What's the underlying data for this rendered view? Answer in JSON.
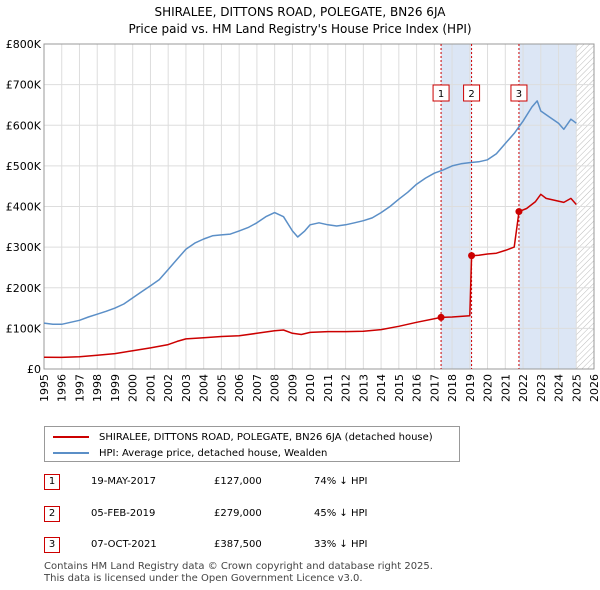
{
  "chart_data": {
    "type": "line",
    "title": "SHIRALEE, DITTONS ROAD, POLEGATE, BN26 6JA",
    "subtitle": "Price paid vs. HM Land Registry's House Price Index (HPI)",
    "xlabel": "",
    "ylabel": "",
    "xlim": [
      1995,
      2026
    ],
    "ylim": [
      0,
      800000
    ],
    "y_ticks": [
      {
        "value": 0,
        "label": "£0"
      },
      {
        "value": 100000,
        "label": "£100K"
      },
      {
        "value": 200000,
        "label": "£200K"
      },
      {
        "value": 300000,
        "label": "£300K"
      },
      {
        "value": 400000,
        "label": "£400K"
      },
      {
        "value": 500000,
        "label": "£500K"
      },
      {
        "value": 600000,
        "label": "£600K"
      },
      {
        "value": 700000,
        "label": "£700K"
      },
      {
        "value": 800000,
        "label": "£800K"
      }
    ],
    "x_ticks": [
      "1995",
      "1996",
      "1997",
      "1998",
      "1999",
      "2000",
      "2001",
      "2002",
      "2003",
      "2004",
      "2005",
      "2006",
      "2007",
      "2008",
      "2009",
      "2010",
      "2011",
      "2012",
      "2013",
      "2014",
      "2015",
      "2016",
      "2017",
      "2018",
      "2019",
      "2020",
      "2021",
      "2022",
      "2023",
      "2024",
      "2025",
      "2026"
    ],
    "grid": true,
    "shaded_spans": [
      [
        2017.38,
        2019.1
      ],
      [
        2021.77,
        2025.0
      ]
    ],
    "hatched_from": 2025.0,
    "series": [
      {
        "name": "SHIRALEE, DITTONS ROAD, POLEGATE, BN26 6JA (detached house)",
        "color": "#cc0000",
        "points": [
          [
            1995.0,
            29000
          ],
          [
            1996.0,
            28500
          ],
          [
            1997.0,
            30000
          ],
          [
            1998.0,
            34000
          ],
          [
            1999.0,
            38000
          ],
          [
            2000.0,
            45000
          ],
          [
            2001.0,
            52000
          ],
          [
            2002.0,
            60000
          ],
          [
            2002.5,
            68000
          ],
          [
            2003.0,
            74000
          ],
          [
            2004.0,
            77000
          ],
          [
            2005.0,
            80000
          ],
          [
            2006.0,
            82000
          ],
          [
            2007.0,
            88000
          ],
          [
            2008.0,
            94000
          ],
          [
            2008.5,
            96000
          ],
          [
            2009.0,
            88000
          ],
          [
            2009.5,
            85000
          ],
          [
            2010.0,
            90000
          ],
          [
            2011.0,
            92000
          ],
          [
            2012.0,
            92000
          ],
          [
            2013.0,
            93000
          ],
          [
            2014.0,
            97000
          ],
          [
            2015.0,
            105000
          ],
          [
            2016.0,
            115000
          ],
          [
            2017.38,
            127000
          ],
          [
            2018.0,
            128000
          ],
          [
            2019.0,
            131000
          ],
          [
            2019.1,
            279000
          ],
          [
            2019.5,
            280000
          ],
          [
            2020.0,
            283000
          ],
          [
            2020.5,
            285000
          ],
          [
            2021.0,
            292000
          ],
          [
            2021.5,
            300000
          ],
          [
            2021.77,
            387500
          ],
          [
            2022.2,
            395000
          ],
          [
            2022.7,
            412000
          ],
          [
            2023.0,
            430000
          ],
          [
            2023.3,
            420000
          ],
          [
            2023.8,
            415000
          ],
          [
            2024.3,
            410000
          ],
          [
            2024.7,
            420000
          ],
          [
            2025.0,
            405000
          ]
        ]
      },
      {
        "name": "HPI: Average price, detached house, Wealden",
        "color": "#5b8fc7",
        "points": [
          [
            1995.0,
            113000
          ],
          [
            1995.5,
            110000
          ],
          [
            1996.0,
            110000
          ],
          [
            1996.5,
            115000
          ],
          [
            1997.0,
            120000
          ],
          [
            1997.5,
            128000
          ],
          [
            1998.0,
            135000
          ],
          [
            1998.5,
            142000
          ],
          [
            1999.0,
            150000
          ],
          [
            1999.5,
            160000
          ],
          [
            2000.0,
            175000
          ],
          [
            2000.5,
            190000
          ],
          [
            2001.0,
            205000
          ],
          [
            2001.5,
            220000
          ],
          [
            2002.0,
            245000
          ],
          [
            2002.5,
            270000
          ],
          [
            2003.0,
            295000
          ],
          [
            2003.5,
            310000
          ],
          [
            2004.0,
            320000
          ],
          [
            2004.5,
            328000
          ],
          [
            2005.0,
            330000
          ],
          [
            2005.5,
            332000
          ],
          [
            2006.0,
            340000
          ],
          [
            2006.5,
            348000
          ],
          [
            2007.0,
            360000
          ],
          [
            2007.5,
            375000
          ],
          [
            2008.0,
            385000
          ],
          [
            2008.5,
            375000
          ],
          [
            2009.0,
            340000
          ],
          [
            2009.3,
            325000
          ],
          [
            2009.7,
            340000
          ],
          [
            2010.0,
            355000
          ],
          [
            2010.5,
            360000
          ],
          [
            2011.0,
            355000
          ],
          [
            2011.5,
            352000
          ],
          [
            2012.0,
            355000
          ],
          [
            2012.5,
            360000
          ],
          [
            2013.0,
            365000
          ],
          [
            2013.5,
            372000
          ],
          [
            2014.0,
            385000
          ],
          [
            2014.5,
            400000
          ],
          [
            2015.0,
            418000
          ],
          [
            2015.5,
            435000
          ],
          [
            2016.0,
            455000
          ],
          [
            2016.5,
            470000
          ],
          [
            2017.0,
            482000
          ],
          [
            2017.5,
            490000
          ],
          [
            2018.0,
            500000
          ],
          [
            2018.5,
            505000
          ],
          [
            2019.0,
            508000
          ],
          [
            2019.5,
            510000
          ],
          [
            2020.0,
            515000
          ],
          [
            2020.5,
            530000
          ],
          [
            2021.0,
            555000
          ],
          [
            2021.5,
            580000
          ],
          [
            2022.0,
            610000
          ],
          [
            2022.5,
            645000
          ],
          [
            2022.8,
            660000
          ],
          [
            2023.0,
            635000
          ],
          [
            2023.5,
            620000
          ],
          [
            2024.0,
            605000
          ],
          [
            2024.3,
            590000
          ],
          [
            2024.7,
            615000
          ],
          [
            2025.0,
            605000
          ]
        ]
      }
    ],
    "sale_markers": [
      {
        "label": "1",
        "x": 2017.38,
        "y": 127000
      },
      {
        "label": "2",
        "x": 2019.1,
        "y": 279000
      },
      {
        "label": "3",
        "x": 2021.77,
        "y": 387500
      }
    ]
  },
  "legend": {
    "property_label": "SHIRALEE, DITTONS ROAD, POLEGATE, BN26 6JA (detached house)",
    "hpi_label": "HPI: Average price, detached house, Wealden"
  },
  "sales": [
    {
      "num": "1",
      "date": "19-MAY-2017",
      "price": "£127,000",
      "hpi": "74% ↓ HPI"
    },
    {
      "num": "2",
      "date": "05-FEB-2019",
      "price": "£279,000",
      "hpi": "45% ↓ HPI"
    },
    {
      "num": "3",
      "date": "07-OCT-2021",
      "price": "£387,500",
      "hpi": "33% ↓ HPI"
    }
  ],
  "footer": {
    "line1": "Contains HM Land Registry data © Crown copyright and database right 2025.",
    "line2": "This data is licensed under the Open Government Licence v3.0."
  }
}
